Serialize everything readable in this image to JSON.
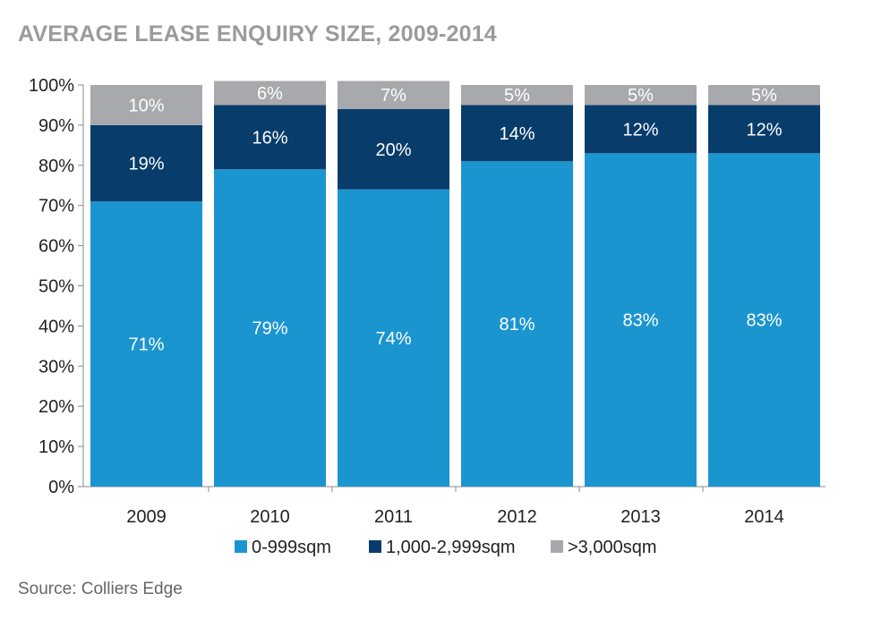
{
  "title": "AVERAGE LEASE ENQUIRY SIZE, 2009-2014",
  "source": "Source: Colliers Edge",
  "chart_data": {
    "type": "bar",
    "stacked": true,
    "categories": [
      "2009",
      "2010",
      "2011",
      "2012",
      "2013",
      "2014"
    ],
    "series": [
      {
        "name": "0-999sqm",
        "values": [
          71,
          79,
          74,
          81,
          83,
          83
        ],
        "labels": [
          "71%",
          "79%",
          "74%",
          "81%",
          "83%",
          "83%"
        ],
        "color": "#1b95d0",
        "label_color": "#ffffff"
      },
      {
        "name": "1,000-2,999sqm",
        "values": [
          19,
          16,
          20,
          14,
          12,
          12
        ],
        "labels": [
          "19%",
          "16%",
          "20%",
          "14%",
          "12%",
          "12%"
        ],
        "color": "#083c6b",
        "label_color": "#ffffff"
      },
      {
        "name": ">3,000sqm",
        "values": [
          10,
          6,
          7,
          5,
          5,
          5
        ],
        "labels": [
          "10%",
          "6%",
          "7%",
          "5%",
          "5%",
          "5%"
        ],
        "color": "#a7a9ac",
        "label_color": "#ffffff"
      }
    ],
    "ylim": [
      0,
      100
    ],
    "yticks": [
      0,
      10,
      20,
      30,
      40,
      50,
      60,
      70,
      80,
      90,
      100
    ],
    "ytick_labels": [
      "0%",
      "10%",
      "20%",
      "30%",
      "40%",
      "50%",
      "60%",
      "70%",
      "80%",
      "90%",
      "100%"
    ],
    "grid": false,
    "legend_position": "bottom"
  }
}
